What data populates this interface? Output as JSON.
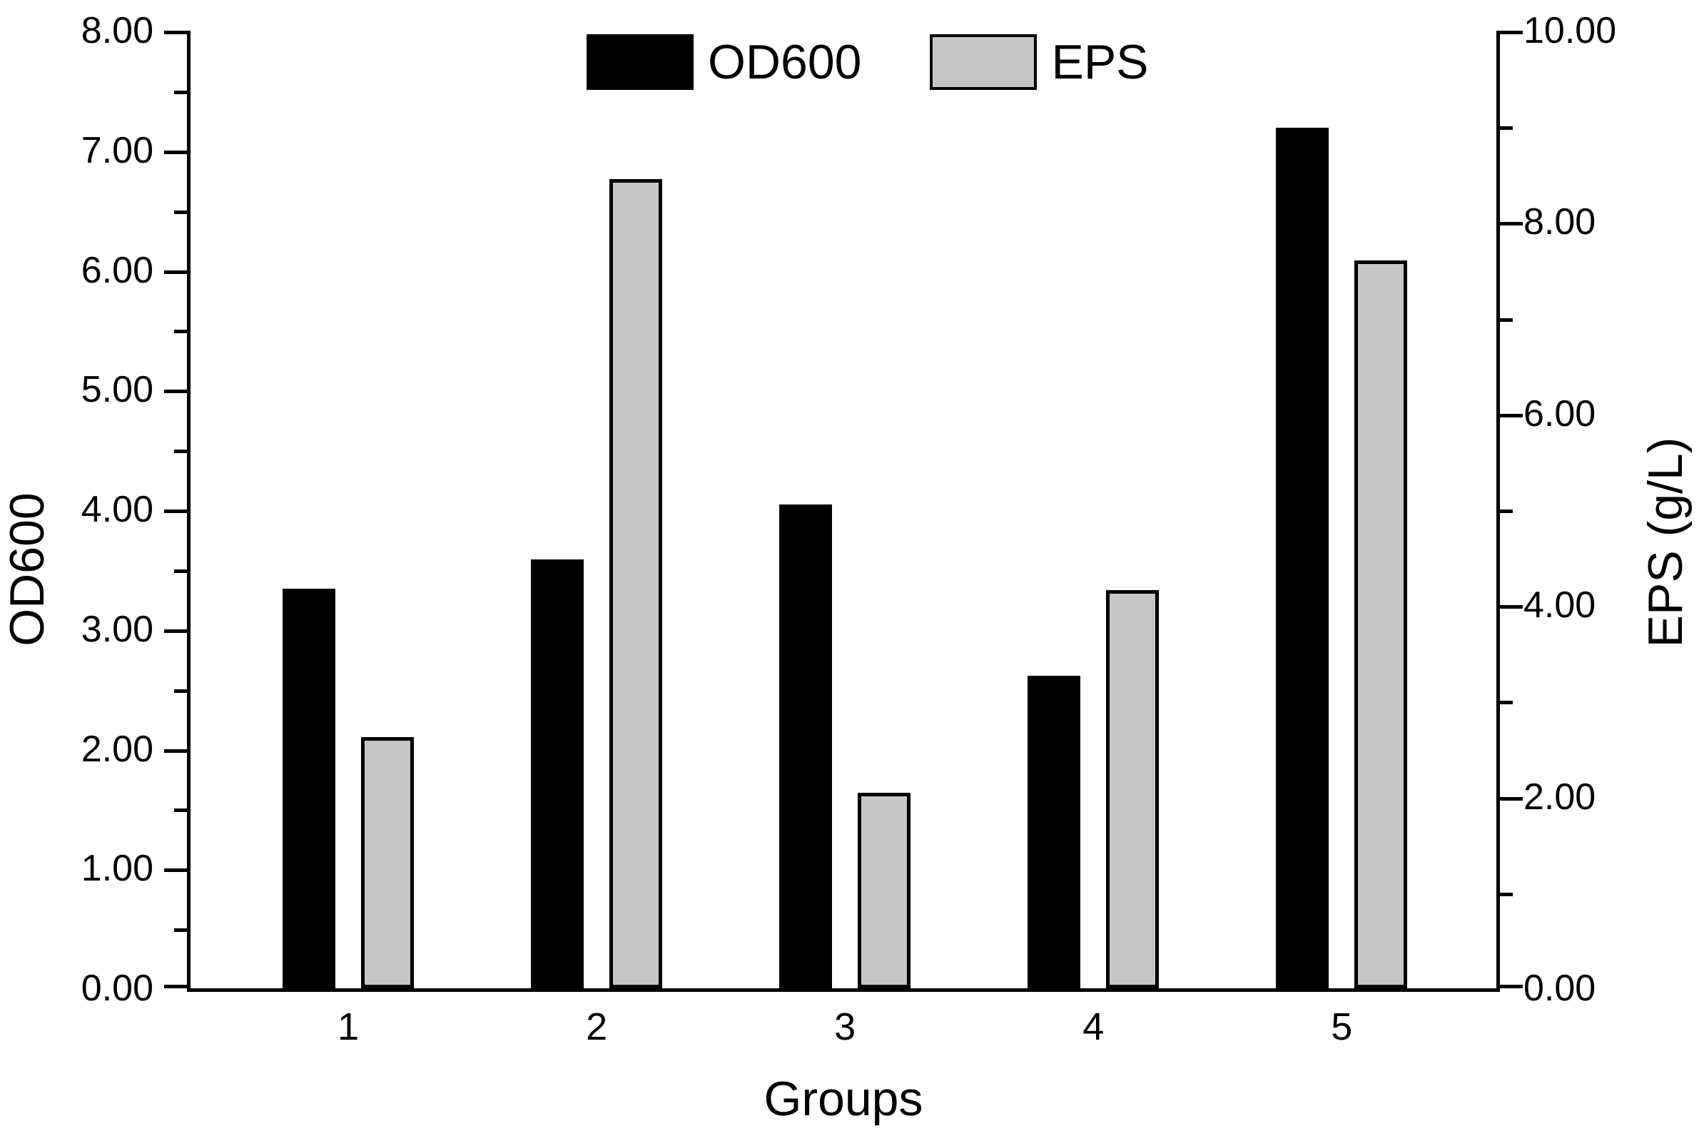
{
  "figure": {
    "background": "#ffffff",
    "text_color": "#000000"
  },
  "legend": {
    "items": [
      {
        "label": "OD600",
        "color": "#000000"
      },
      {
        "label": "EPS",
        "color": "#c6c6c6"
      }
    ]
  },
  "axes": {
    "x_title": "Groups",
    "y_left_title": "OD600",
    "y_right_title": "EPS (g/L)"
  },
  "chart_data": {
    "type": "bar",
    "categories": [
      "1",
      "2",
      "3",
      "4",
      "5"
    ],
    "series": [
      {
        "name": "OD600",
        "axis": "left",
        "color": "#000000",
        "values": [
          3.34,
          3.58,
          4.04,
          2.61,
          7.19
        ]
      },
      {
        "name": "EPS",
        "axis": "right",
        "color": "#c6c6c6",
        "values": [
          2.62,
          8.45,
          2.04,
          4.16,
          7.6
        ]
      }
    ],
    "title": "",
    "xlabel": "Groups",
    "ylabel_left": "OD600",
    "ylabel_right": "EPS (g/L)",
    "y_left_axis": {
      "min": 0,
      "max": 8,
      "major_step": 1.0,
      "minor_step": 0.5,
      "tick_labels": [
        "0.00",
        "1.00",
        "2.00",
        "3.00",
        "4.00",
        "5.00",
        "6.00",
        "7.00",
        "8.00"
      ]
    },
    "y_right_axis": {
      "min": 0,
      "max": 10,
      "major_step": 2.0,
      "minor_step": 1.0,
      "tick_labels": [
        "0.00",
        "2.00",
        "4.00",
        "6.00",
        "8.00",
        "10.00"
      ]
    },
    "grid": false,
    "legend_position": "top-center",
    "bar_outline": {
      "OD600": "none",
      "EPS": "black"
    }
  }
}
